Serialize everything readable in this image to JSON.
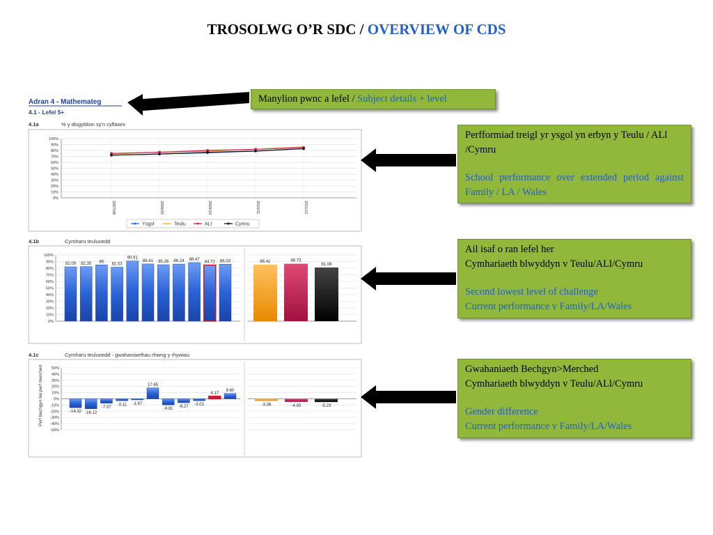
{
  "title": {
    "welsh": "TROSOLWG O’R SDC / ",
    "english": "OVERVIEW OF CDS"
  },
  "report": {
    "section": "Adran 4 - Mathemateg",
    "subsection": "4.1 - Lefel 5+",
    "c1_label": "4.1a",
    "c1_title": "% y disgyblion sy'n cyflawni",
    "c2_label": "4.1b",
    "c2_title": "Cymharu teuluoedd",
    "c3_label": "4.1c",
    "c3_title": "Cymharu teuluoedd - gwahaniaethau rhwng y rhywiau",
    "c3_ylabel": "Perf bechgyn llai perf merched"
  },
  "callouts": {
    "top": {
      "welsh": "Manylion pwnc a lefel / ",
      "english": "Subject details + level"
    },
    "box1": {
      "welsh": "Perfformiad treigl yr ysgol yn erbyn y Teulu / ALl /Cymru",
      "english": "School performance over extended period against Family / LA / Wales"
    },
    "box2": {
      "welsh1": "Ail isaf o ran lefel her",
      "welsh2": "Cymhariaeth blwyddyn v Teulu/ALl/Cymru",
      "english1": "Second lowest level of challenge",
      "english2": "Current performance v Family/LA/Wales"
    },
    "box3": {
      "welsh1": "Gwahaniaeth Bechgyn>Merched",
      "welsh2": "Cymhariaeth blwyddyn v Teulu/ALl/Cymru",
      "english1": "Gender difference",
      "english2": "Current performance v Family/LA/Wales"
    }
  },
  "colors": {
    "ysgol": "#2a62d6",
    "teulu": "#f5a623",
    "alu": "#c8204a",
    "cymru": "#111111",
    "callout_bg": "#92b83b",
    "english_text": "#1f5fd0"
  },
  "chart_data": [
    {
      "type": "line",
      "title": "% y disgyblion sy'n cyflawni",
      "categories": [
        "2007/08",
        "2008/09",
        "2009/10",
        "2010/11",
        "2011/12"
      ],
      "ylim": [
        0,
        100
      ],
      "yticks": [
        "100%",
        "90%",
        "80%",
        "70%",
        "60%",
        "50%",
        "40%",
        "30%",
        "20%",
        "10%",
        "0%"
      ],
      "legend_position": "bottom",
      "series": [
        {
          "name": "Ysgol",
          "values": [
            72,
            74,
            76,
            79,
            83
          ]
        },
        {
          "name": "Teulu",
          "values": [
            74,
            77,
            79,
            82,
            86
          ]
        },
        {
          "name": "ALl",
          "values": [
            75,
            77,
            80,
            82,
            85
          ]
        },
        {
          "name": "Cymru",
          "values": [
            72,
            74,
            77,
            79,
            83
          ]
        }
      ]
    },
    {
      "type": "bar",
      "title": "Cymharu teuluoedd",
      "ylim": [
        0,
        100
      ],
      "yticks": [
        "100%",
        "90%",
        "80%",
        "70%",
        "60%",
        "50%",
        "40%",
        "30%",
        "20%",
        "10%",
        "0%"
      ],
      "family_values": [
        82.09,
        82.35,
        85,
        81.53,
        90.91,
        86.41,
        85.26,
        86.24,
        88.47,
        84.72,
        86.03
      ],
      "family_labels": [
        "82.09",
        "82.35",
        "85",
        "81.53",
        "90.91",
        "86.41",
        "85.26",
        "86.24",
        "88.47",
        "84.72",
        "86.03"
      ],
      "highlighted_index": 9,
      "comparison_values": [
        85.41,
        86.73,
        81.08
      ],
      "comparison_labels": [
        "85.41",
        "86.73",
        "81.08"
      ]
    },
    {
      "type": "bar",
      "title": "Cymharu teuluoedd - gwahaniaethau rhwng y rhywiau",
      "ylabel": "Perf bechgyn llai perf merched",
      "ylim": [
        -50,
        50
      ],
      "yticks": [
        "50%",
        "40%",
        "30%",
        "20%",
        "10%",
        "0%",
        "-10%",
        "-20%",
        "-30%",
        "-40%",
        "-50%"
      ],
      "family_values": [
        -14.32,
        -16.12,
        -7.07,
        -3.11,
        -1.67,
        17.65,
        -9.81,
        -6.27,
        -3.01,
        4.17,
        8.6
      ],
      "family_labels": [
        "-14.32",
        "-16.12",
        "-7.07",
        "-3.11",
        "-1.67",
        "17.65",
        "-9.81",
        "-6.27",
        "-3.01",
        "4.17",
        "8.60"
      ],
      "highlighted_index": 9,
      "comparison_values": [
        -3.38,
        -4.93,
        -5.23
      ],
      "comparison_labels": [
        "-3.38",
        "-4.93",
        "-5.23"
      ]
    }
  ]
}
